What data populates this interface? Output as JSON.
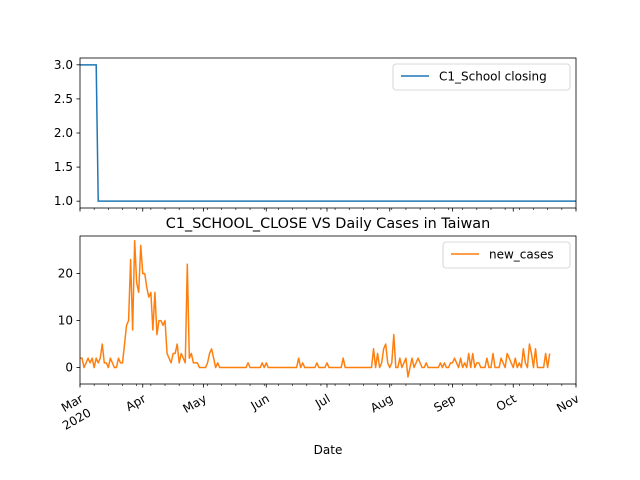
{
  "chart_data": [
    {
      "type": "line",
      "title": "",
      "xlabel": "",
      "ylabel": "",
      "x_start": "2020-03-01",
      "xlim": [
        "2020-03-01",
        "2020-11-01"
      ],
      "ylim": [
        0.9,
        3.1
      ],
      "yticks": [
        "1.0",
        "1.5",
        "2.0",
        "2.5",
        "3.0"
      ],
      "legend_position": "top-right",
      "series": [
        {
          "name": "C1_School closing",
          "color": "#1f77b4",
          "x": [
            "2020-03-01",
            "2020-03-09",
            "2020-03-10",
            "2020-11-01"
          ],
          "values": [
            3.0,
            3.0,
            1.0,
            1.0
          ]
        }
      ]
    },
    {
      "type": "line",
      "title": "C1_SCHOOL_CLOSE VS Daily Cases in Taiwan",
      "xlabel": "Date",
      "ylabel": "",
      "xlim": [
        "2020-03-01",
        "2020-11-01"
      ],
      "ylim": [
        -3.5,
        28
      ],
      "yticks": [
        "0",
        "10",
        "20"
      ],
      "legend_position": "top-right",
      "x_tick_labels": [
        {
          "date": "2020-03-01",
          "label": "Mar",
          "sublabel": "2020"
        },
        {
          "date": "2020-04-01",
          "label": "Apr"
        },
        {
          "date": "2020-05-01",
          "label": "May"
        },
        {
          "date": "2020-06-01",
          "label": "Jun"
        },
        {
          "date": "2020-07-01",
          "label": "Jul"
        },
        {
          "date": "2020-08-01",
          "label": "Aug"
        },
        {
          "date": "2020-09-01",
          "label": "Sep"
        },
        {
          "date": "2020-10-01",
          "label": "Oct"
        },
        {
          "date": "2020-11-01",
          "label": "Nov"
        }
      ],
      "series": [
        {
          "name": "new_cases",
          "color": "#ff7f0e",
          "x_start": "2020-03-01",
          "values": [
            2,
            2,
            0,
            1,
            2,
            1,
            2,
            0,
            2,
            1,
            2,
            5,
            1,
            1,
            0,
            2,
            1,
            0,
            0,
            2,
            1,
            1,
            5,
            9,
            10,
            23,
            8,
            27,
            18,
            16,
            26,
            20,
            20,
            17,
            15,
            16,
            8,
            16,
            7,
            10,
            10,
            9,
            10,
            3,
            2,
            1,
            3,
            3,
            5,
            1,
            3,
            2,
            1,
            22,
            2,
            3,
            1,
            1,
            1,
            0,
            0,
            0,
            0,
            1,
            3,
            4,
            2,
            0,
            1,
            0,
            0,
            0,
            0,
            0,
            0,
            0,
            0,
            0,
            0,
            0,
            0,
            0,
            0,
            1,
            0,
            0,
            0,
            0,
            0,
            0,
            1,
            0,
            1,
            0,
            0,
            0,
            0,
            0,
            0,
            0,
            0,
            0,
            0,
            0,
            0,
            0,
            0,
            0,
            2,
            0,
            1,
            0,
            0,
            0,
            0,
            0,
            0,
            1,
            0,
            0,
            0,
            0,
            1,
            0,
            0,
            0,
            0,
            0,
            0,
            0,
            2,
            0,
            0,
            0,
            0,
            0,
            0,
            0,
            0,
            0,
            0,
            0,
            0,
            0,
            0,
            4,
            0,
            3,
            0,
            1,
            4,
            5,
            1,
            0,
            1,
            7,
            0,
            0,
            2,
            0,
            1,
            2,
            -2,
            0,
            2,
            0,
            1,
            2,
            1,
            0,
            0,
            1,
            0,
            0,
            0,
            0,
            0,
            0,
            1,
            0,
            1,
            0,
            0,
            1,
            1,
            2,
            1,
            0,
            2,
            0,
            1,
            0,
            3,
            0,
            3,
            0,
            1,
            1,
            0,
            0,
            0,
            2,
            0,
            0,
            3,
            0,
            0,
            0,
            2,
            1,
            0,
            3,
            2,
            1,
            0,
            2,
            0,
            1,
            0,
            4,
            1,
            0,
            5,
            3,
            0,
            4,
            0,
            0,
            0,
            0,
            3,
            0,
            3
          ]
        }
      ]
    }
  ]
}
